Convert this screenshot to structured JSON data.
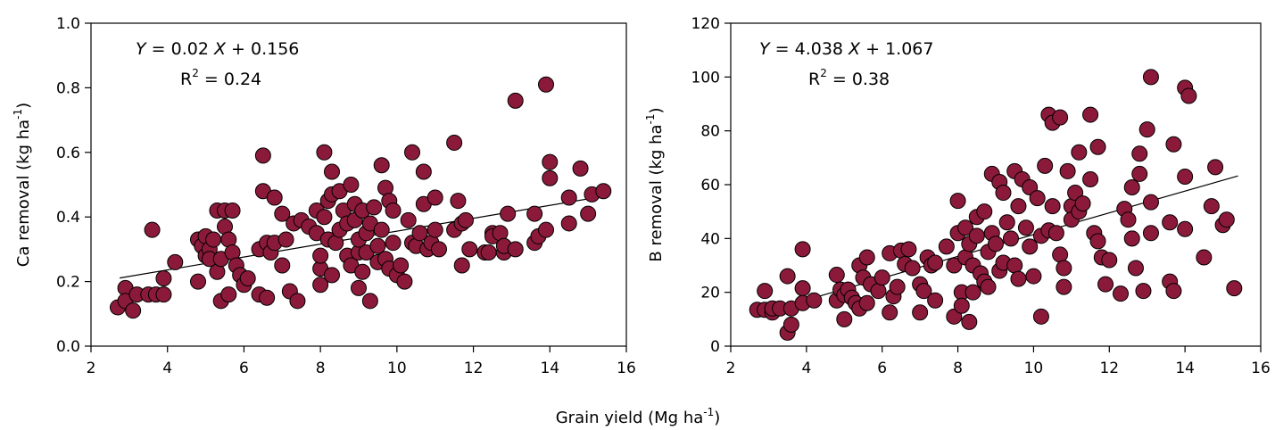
{
  "figure": {
    "xlabel_main": "Grain yield (Mg ha",
    "xlabel_sup": "-1",
    "xlabel_end": ")"
  },
  "chart_data": [
    {
      "type": "scatter",
      "title": "",
      "xlabel": "",
      "ylabel_main": "Ca removal (kg ha",
      "ylabel_sup": "-1",
      "ylabel_end": ")",
      "xlim": [
        2,
        16
      ],
      "ylim": [
        0,
        1.0
      ],
      "xticks": [
        2,
        4,
        6,
        8,
        10,
        12,
        14,
        16
      ],
      "yticks": [
        0,
        0.2,
        0.4,
        0.6,
        0.8,
        1.0
      ],
      "ytick_labels": [
        "0.0",
        "0.2",
        "0.4",
        "0.6",
        "0.8",
        "1.0"
      ],
      "grid": false,
      "marker_color": "#8b1a3a",
      "equation": {
        "y_var": "Y",
        "middle": " = 0.02 ",
        "x_var": "X",
        "rest": " + 0.156",
        "r2_base": "R",
        "r2_sup": "2",
        "r2_rest": " = 0.24"
      },
      "regression": {
        "slope": 0.02,
        "intercept": 0.156,
        "x_range": [
          2.75,
          15.4
        ]
      },
      "points": [
        [
          2.7,
          0.12
        ],
        [
          2.9,
          0.18
        ],
        [
          2.9,
          0.14
        ],
        [
          3.1,
          0.11
        ],
        [
          3.2,
          0.16
        ],
        [
          3.5,
          0.16
        ],
        [
          3.6,
          0.36
        ],
        [
          3.7,
          0.16
        ],
        [
          3.9,
          0.21
        ],
        [
          3.9,
          0.16
        ],
        [
          4.2,
          0.26
        ],
        [
          4.8,
          0.33
        ],
        [
          4.8,
          0.2
        ],
        [
          4.9,
          0.31
        ],
        [
          5.0,
          0.34
        ],
        [
          5.0,
          0.28
        ],
        [
          5.1,
          0.3
        ],
        [
          5.1,
          0.27
        ],
        [
          5.2,
          0.33
        ],
        [
          5.3,
          0.42
        ],
        [
          5.3,
          0.23
        ],
        [
          5.4,
          0.14
        ],
        [
          5.4,
          0.27
        ],
        [
          5.5,
          0.42
        ],
        [
          5.5,
          0.37
        ],
        [
          5.6,
          0.33
        ],
        [
          5.6,
          0.16
        ],
        [
          5.7,
          0.29
        ],
        [
          5.7,
          0.42
        ],
        [
          5.8,
          0.25
        ],
        [
          5.9,
          0.22
        ],
        [
          6.0,
          0.19
        ],
        [
          6.1,
          0.21
        ],
        [
          6.4,
          0.3
        ],
        [
          6.4,
          0.16
        ],
        [
          6.5,
          0.59
        ],
        [
          6.5,
          0.48
        ],
        [
          6.6,
          0.15
        ],
        [
          6.6,
          0.32
        ],
        [
          6.7,
          0.29
        ],
        [
          6.8,
          0.46
        ],
        [
          6.8,
          0.32
        ],
        [
          7.0,
          0.41
        ],
        [
          7.0,
          0.25
        ],
        [
          7.1,
          0.33
        ],
        [
          7.2,
          0.17
        ],
        [
          7.3,
          0.38
        ],
        [
          7.4,
          0.14
        ],
        [
          7.5,
          0.39
        ],
        [
          7.7,
          0.37
        ],
        [
          7.9,
          0.35
        ],
        [
          7.9,
          0.42
        ],
        [
          8.0,
          0.24
        ],
        [
          8.0,
          0.28
        ],
        [
          8.0,
          0.19
        ],
        [
          8.1,
          0.6
        ],
        [
          8.1,
          0.4
        ],
        [
          8.2,
          0.45
        ],
        [
          8.2,
          0.33
        ],
        [
          8.3,
          0.54
        ],
        [
          8.3,
          0.47
        ],
        [
          8.3,
          0.22
        ],
        [
          8.4,
          0.32
        ],
        [
          8.5,
          0.48
        ],
        [
          8.5,
          0.36
        ],
        [
          8.6,
          0.42
        ],
        [
          8.7,
          0.28
        ],
        [
          8.7,
          0.38
        ],
        [
          8.8,
          0.25
        ],
        [
          8.8,
          0.5
        ],
        [
          8.9,
          0.39
        ],
        [
          8.9,
          0.44
        ],
        [
          9.0,
          0.29
        ],
        [
          9.0,
          0.33
        ],
        [
          9.0,
          0.18
        ],
        [
          9.1,
          0.23
        ],
        [
          9.1,
          0.42
        ],
        [
          9.2,
          0.35
        ],
        [
          9.2,
          0.29
        ],
        [
          9.3,
          0.38
        ],
        [
          9.3,
          0.14
        ],
        [
          9.4,
          0.43
        ],
        [
          9.5,
          0.26
        ],
        [
          9.5,
          0.31
        ],
        [
          9.6,
          0.56
        ],
        [
          9.6,
          0.36
        ],
        [
          9.7,
          0.49
        ],
        [
          9.7,
          0.27
        ],
        [
          9.8,
          0.45
        ],
        [
          9.8,
          0.24
        ],
        [
          9.9,
          0.32
        ],
        [
          9.9,
          0.42
        ],
        [
          10.0,
          0.22
        ],
        [
          10.1,
          0.25
        ],
        [
          10.2,
          0.2
        ],
        [
          10.3,
          0.39
        ],
        [
          10.4,
          0.6
        ],
        [
          10.4,
          0.32
        ],
        [
          10.5,
          0.31
        ],
        [
          10.6,
          0.35
        ],
        [
          10.7,
          0.54
        ],
        [
          10.7,
          0.44
        ],
        [
          10.8,
          0.3
        ],
        [
          10.9,
          0.32
        ],
        [
          11.0,
          0.46
        ],
        [
          11.0,
          0.36
        ],
        [
          11.1,
          0.3
        ],
        [
          11.5,
          0.63
        ],
        [
          11.5,
          0.36
        ],
        [
          11.6,
          0.45
        ],
        [
          11.7,
          0.38
        ],
        [
          11.7,
          0.25
        ],
        [
          11.8,
          0.39
        ],
        [
          11.9,
          0.3
        ],
        [
          12.3,
          0.29
        ],
        [
          12.4,
          0.29
        ],
        [
          12.5,
          0.35
        ],
        [
          12.5,
          0.34
        ],
        [
          12.7,
          0.35
        ],
        [
          12.8,
          0.29
        ],
        [
          12.8,
          0.31
        ],
        [
          12.9,
          0.41
        ],
        [
          13.1,
          0.3
        ],
        [
          13.1,
          0.76
        ],
        [
          13.6,
          0.41
        ],
        [
          13.6,
          0.32
        ],
        [
          13.7,
          0.34
        ],
        [
          13.9,
          0.36
        ],
        [
          13.9,
          0.81
        ],
        [
          14.0,
          0.52
        ],
        [
          14.0,
          0.57
        ],
        [
          14.5,
          0.46
        ],
        [
          14.5,
          0.38
        ],
        [
          14.8,
          0.55
        ],
        [
          15.0,
          0.41
        ],
        [
          15.1,
          0.47
        ],
        [
          15.4,
          0.48
        ]
      ]
    },
    {
      "type": "scatter",
      "title": "",
      "xlabel": "",
      "ylabel_main": "B removal (kg ha",
      "ylabel_sup": "-1",
      "ylabel_end": ")",
      "xlim": [
        2,
        16
      ],
      "ylim": [
        0,
        120
      ],
      "xticks": [
        2,
        4,
        6,
        8,
        10,
        12,
        14,
        16
      ],
      "yticks": [
        0,
        20,
        40,
        60,
        80,
        100,
        120
      ],
      "ytick_labels": [
        "0",
        "20",
        "40",
        "60",
        "80",
        "100",
        "120"
      ],
      "grid": false,
      "marker_color": "#8b1a3a",
      "equation": {
        "y_var": "Y",
        "middle": " = 4.038 ",
        "x_var": "X",
        "rest": " + 1.067",
        "r2_base": "R",
        "r2_sup": "2",
        "r2_rest": " = 0.38"
      },
      "regression": {
        "slope": 4.038,
        "intercept": 1.067,
        "x_range": [
          2.75,
          15.4
        ]
      },
      "points": [
        [
          2.7,
          13.5
        ],
        [
          2.9,
          20.5
        ],
        [
          2.9,
          13.5
        ],
        [
          3.1,
          12.5
        ],
        [
          3.1,
          14
        ],
        [
          3.3,
          14
        ],
        [
          3.5,
          26
        ],
        [
          3.5,
          5
        ],
        [
          3.6,
          8
        ],
        [
          3.6,
          14
        ],
        [
          3.9,
          36
        ],
        [
          3.9,
          21.5
        ],
        [
          3.9,
          16
        ],
        [
          4.2,
          17
        ],
        [
          4.8,
          26.5
        ],
        [
          4.8,
          17
        ],
        [
          4.9,
          21
        ],
        [
          5.0,
          10
        ],
        [
          5.0,
          19
        ],
        [
          5.1,
          21
        ],
        [
          5.2,
          18
        ],
        [
          5.3,
          16
        ],
        [
          5.4,
          30
        ],
        [
          5.4,
          14
        ],
        [
          5.5,
          25.5
        ],
        [
          5.6,
          33
        ],
        [
          5.6,
          16
        ],
        [
          5.7,
          23
        ],
        [
          5.9,
          20.5
        ],
        [
          6.0,
          25.5
        ],
        [
          6.2,
          12.5
        ],
        [
          6.2,
          34.5
        ],
        [
          6.3,
          18.5
        ],
        [
          6.4,
          22
        ],
        [
          6.5,
          35.5
        ],
        [
          6.6,
          30.5
        ],
        [
          6.7,
          36
        ],
        [
          6.8,
          29
        ],
        [
          7.0,
          23
        ],
        [
          7.0,
          12.5
        ],
        [
          7.1,
          20.5
        ],
        [
          7.2,
          33
        ],
        [
          7.3,
          30
        ],
        [
          7.4,
          31
        ],
        [
          7.4,
          17
        ],
        [
          7.7,
          37
        ],
        [
          7.9,
          11
        ],
        [
          7.9,
          30
        ],
        [
          8.0,
          54
        ],
        [
          8.0,
          42
        ],
        [
          8.1,
          20
        ],
        [
          8.1,
          15
        ],
        [
          8.2,
          44
        ],
        [
          8.2,
          33
        ],
        [
          8.3,
          9
        ],
        [
          8.3,
          38
        ],
        [
          8.4,
          30
        ],
        [
          8.4,
          20
        ],
        [
          8.5,
          48
        ],
        [
          8.5,
          41
        ],
        [
          8.6,
          27
        ],
        [
          8.7,
          50
        ],
        [
          8.7,
          24
        ],
        [
          8.8,
          35
        ],
        [
          8.8,
          22
        ],
        [
          8.9,
          64
        ],
        [
          8.9,
          42
        ],
        [
          9.0,
          38
        ],
        [
          9.1,
          61
        ],
        [
          9.1,
          28
        ],
        [
          9.2,
          57
        ],
        [
          9.2,
          31
        ],
        [
          9.3,
          46
        ],
        [
          9.4,
          40
        ],
        [
          9.5,
          65
        ],
        [
          9.5,
          30
        ],
        [
          9.6,
          52
        ],
        [
          9.6,
          25
        ],
        [
          9.7,
          62
        ],
        [
          9.8,
          44
        ],
        [
          9.9,
          59
        ],
        [
          9.9,
          37
        ],
        [
          10.0,
          26
        ],
        [
          10.1,
          55
        ],
        [
          10.2,
          11
        ],
        [
          10.2,
          41
        ],
        [
          10.3,
          67
        ],
        [
          10.4,
          86
        ],
        [
          10.4,
          43
        ],
        [
          10.5,
          83
        ],
        [
          10.5,
          52
        ],
        [
          10.6,
          42
        ],
        [
          10.7,
          85
        ],
        [
          10.7,
          34
        ],
        [
          10.8,
          29
        ],
        [
          10.8,
          22
        ],
        [
          10.9,
          65
        ],
        [
          11.0,
          52
        ],
        [
          11.0,
          47
        ],
        [
          11.1,
          57
        ],
        [
          11.2,
          72
        ],
        [
          11.2,
          50
        ],
        [
          11.3,
          53
        ],
        [
          11.5,
          86
        ],
        [
          11.5,
          62
        ],
        [
          11.6,
          42
        ],
        [
          11.7,
          39
        ],
        [
          11.7,
          74
        ],
        [
          11.8,
          33
        ],
        [
          11.9,
          23
        ],
        [
          12.0,
          32
        ],
        [
          12.3,
          19.5
        ],
        [
          12.4,
          51
        ],
        [
          12.5,
          47
        ],
        [
          12.6,
          40
        ],
        [
          12.6,
          59
        ],
        [
          12.7,
          29
        ],
        [
          12.8,
          64
        ],
        [
          12.8,
          71.5
        ],
        [
          12.9,
          20.5
        ],
        [
          13.0,
          80.5
        ],
        [
          13.1,
          53.5
        ],
        [
          13.1,
          42
        ],
        [
          13.1,
          100
        ],
        [
          13.6,
          46
        ],
        [
          13.6,
          24
        ],
        [
          13.7,
          75
        ],
        [
          13.7,
          20.5
        ],
        [
          14.0,
          96
        ],
        [
          14.0,
          63
        ],
        [
          14.0,
          43.5
        ],
        [
          14.1,
          93
        ],
        [
          14.5,
          33
        ],
        [
          14.7,
          52
        ],
        [
          14.8,
          66.5
        ],
        [
          15.0,
          45
        ],
        [
          15.1,
          47
        ],
        [
          15.3,
          21.5
        ]
      ]
    }
  ]
}
